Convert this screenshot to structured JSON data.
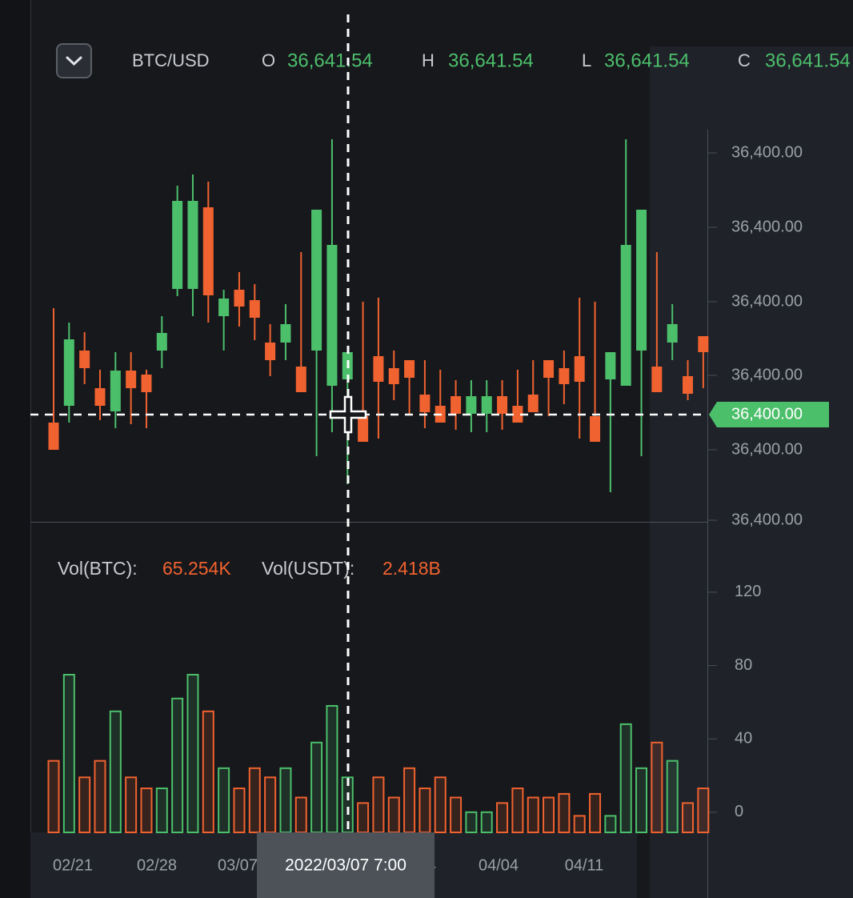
{
  "header": {
    "symbol": "BTC/USD",
    "fields": [
      {
        "label": "O",
        "value": "36,641.54"
      },
      {
        "label": "H",
        "value": "36,641.54"
      },
      {
        "label": "L",
        "value": "36,641.54"
      },
      {
        "label": "C",
        "value": "36,641.54"
      }
    ]
  },
  "chart_data": [
    {
      "type": "candlestick",
      "open": [
        122,
        143,
        212,
        165,
        136,
        187,
        182,
        212,
        289,
        289,
        391,
        255,
        288,
        275,
        222,
        222,
        192,
        212,
        168,
        176,
        130,
        205,
        190,
        200,
        157,
        143,
        155,
        133,
        133,
        155,
        143,
        157,
        200,
        190,
        205,
        130,
        176,
        168,
        212,
        192,
        222,
        180,
        230
      ],
      "close": [
        88,
        226,
        190,
        143,
        187,
        165,
        160,
        234,
        399,
        399,
        281,
        277,
        267,
        253,
        200,
        245,
        160,
        388,
        344,
        210,
        98,
        173,
        170,
        178,
        135,
        122,
        133,
        155,
        155,
        133,
        122,
        135,
        178,
        170,
        173,
        98,
        210,
        344,
        388,
        160,
        245,
        158,
        210
      ],
      "high": [
        265,
        247,
        235,
        188,
        210,
        210,
        188,
        255,
        418,
        432,
        423,
        288,
        310,
        295,
        245,
        270,
        335,
        388,
        476,
        210,
        273,
        278,
        212,
        200,
        200,
        188,
        175,
        175,
        175,
        175,
        188,
        200,
        200,
        212,
        278,
        273,
        210,
        476,
        388,
        335,
        270,
        200,
        230
      ],
      "low": [
        88,
        122,
        170,
        125,
        115,
        120,
        115,
        190,
        280,
        255,
        247,
        212,
        242,
        225,
        180,
        200,
        160,
        80,
        110,
        45,
        98,
        102,
        150,
        132,
        115,
        122,
        113,
        110,
        110,
        113,
        122,
        135,
        130,
        145,
        102,
        98,
        35,
        168,
        80,
        160,
        200,
        150,
        165
      ],
      "up_color": "#4cbf6b",
      "down_color": "#f0622f",
      "ylim": [
        -2,
        485
      ],
      "yticks": [
        {
          "value": 459,
          "label": "36,400.00"
        },
        {
          "value": 366,
          "label": "36,400.00"
        },
        {
          "value": 273,
          "label": "36,400.00"
        },
        {
          "value": 181,
          "label": "36,400.00"
        },
        {
          "value": 88,
          "label": "36,400.00"
        },
        {
          "value": 0,
          "label": "36,400.00"
        }
      ],
      "last_price": {
        "value": 132,
        "label": "36,400.00"
      }
    },
    {
      "type": "bar",
      "legend": [
        {
          "name": "Vol(BTC):",
          "value": "65.254K"
        },
        {
          "name": "Vol(USDT):",
          "value": "2.418B"
        }
      ],
      "values": [
        28,
        75,
        19,
        28,
        55,
        19,
        13,
        13,
        62,
        75,
        55,
        24,
        13,
        24,
        19,
        24,
        8,
        38,
        58,
        19,
        5,
        19,
        8,
        24,
        13,
        19,
        8,
        0,
        0,
        5,
        13,
        8,
        8,
        10,
        -2,
        10,
        -2,
        48,
        24,
        38,
        28,
        5,
        13
      ],
      "ylim": [
        -11,
        130
      ],
      "yticks": [
        120,
        80,
        40,
        0
      ]
    }
  ],
  "x_axis": {
    "labels": [
      "02/21",
      "02/28",
      "03/07",
      "03/14",
      "04/04",
      "04/11"
    ],
    "cursor": "2022/03/07 7:00"
  }
}
